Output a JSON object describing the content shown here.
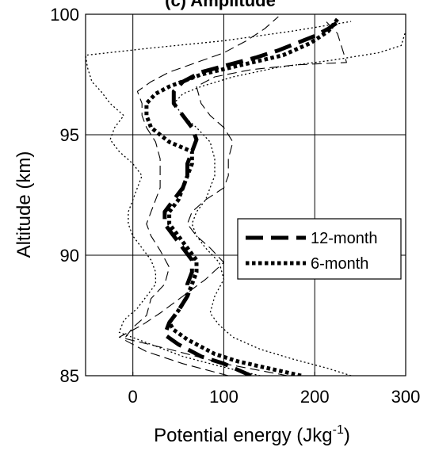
{
  "chart_data": {
    "type": "line",
    "title": "(c) Amplitude",
    "xlabel": "Potential energy (Jkg",
    "xlabel_sup": "-1",
    "xlabel_close": ")",
    "ylabel": "Altitude (km)",
    "xlim": [
      -52,
      300
    ],
    "ylim": [
      85,
      100
    ],
    "xticks": [
      0,
      100,
      200,
      300
    ],
    "yticks": [
      85,
      90,
      95,
      100
    ],
    "xtick_labels": [
      "0",
      "100",
      "200",
      "300"
    ],
    "ytick_labels": [
      "85",
      "90",
      "95",
      "100"
    ],
    "grid": true,
    "legend_placement": "center-right",
    "series": [
      {
        "name": "12-month",
        "style": "dashed-thick",
        "points": [
          [
            130,
            85
          ],
          [
            100,
            85.5
          ],
          [
            75,
            85.8
          ],
          [
            50,
            86.3
          ],
          [
            35,
            86.7
          ],
          [
            40,
            87.2
          ],
          [
            50,
            87.7
          ],
          [
            60,
            88.3
          ],
          [
            60,
            88.8
          ],
          [
            65,
            89.3
          ],
          [
            65,
            89.8
          ],
          [
            55,
            90.3
          ],
          [
            45,
            90.8
          ],
          [
            35,
            91.3
          ],
          [
            35,
            91.8
          ],
          [
            45,
            92.3
          ],
          [
            55,
            92.8
          ],
          [
            60,
            93.3
          ],
          [
            60,
            93.8
          ],
          [
            65,
            94.3
          ],
          [
            70,
            94.8
          ],
          [
            65,
            95.3
          ],
          [
            55,
            95.8
          ],
          [
            45,
            96.3
          ],
          [
            45,
            96.8
          ],
          [
            55,
            97.2
          ],
          [
            75,
            97.6
          ],
          [
            105,
            97.9
          ],
          [
            135,
            98.2
          ],
          [
            160,
            98.5
          ],
          [
            180,
            98.8
          ],
          [
            200,
            99.1
          ],
          [
            215,
            99.4
          ],
          [
            230,
            99.8
          ]
        ]
      },
      {
        "name": "6-month",
        "style": "dotted-thick",
        "points": [
          [
            185,
            85
          ],
          [
            150,
            85.3
          ],
          [
            115,
            85.6
          ],
          [
            90,
            85.9
          ],
          [
            75,
            86.2
          ],
          [
            60,
            86.5
          ],
          [
            45,
            86.9
          ],
          [
            40,
            87.2
          ],
          [
            50,
            87.7
          ],
          [
            60,
            88.3
          ],
          [
            65,
            88.8
          ],
          [
            70,
            89.3
          ],
          [
            70,
            89.8
          ],
          [
            60,
            90.3
          ],
          [
            50,
            90.8
          ],
          [
            40,
            91.3
          ],
          [
            40,
            91.8
          ],
          [
            50,
            92.3
          ],
          [
            55,
            92.8
          ],
          [
            60,
            93.3
          ],
          [
            65,
            93.8
          ],
          [
            65,
            94.3
          ],
          [
            40,
            94.7
          ],
          [
            20,
            95.3
          ],
          [
            15,
            95.8
          ],
          [
            15,
            96.3
          ],
          [
            25,
            96.7
          ],
          [
            40,
            97.0
          ],
          [
            75,
            97.5
          ],
          [
            120,
            97.9
          ],
          [
            165,
            98.3
          ],
          [
            195,
            98.8
          ],
          [
            215,
            99.3
          ],
          [
            225,
            99.8
          ]
        ]
      },
      {
        "name": "",
        "style": "dashed-thin",
        "points": [
          [
            170,
            85
          ],
          [
            100,
            85.5
          ],
          [
            40,
            86.1
          ],
          [
            -15,
            86.6
          ],
          [
            10,
            87.1
          ],
          [
            30,
            87.6
          ],
          [
            55,
            88.3
          ],
          [
            80,
            89.0
          ],
          [
            100,
            89.7
          ],
          [
            85,
            90.3
          ],
          [
            70,
            90.8
          ],
          [
            60,
            91.3
          ],
          [
            65,
            91.8
          ],
          [
            80,
            92.3
          ],
          [
            100,
            92.8
          ],
          [
            105,
            93.3
          ],
          [
            105,
            94.0
          ],
          [
            110,
            94.7
          ],
          [
            100,
            95.3
          ],
          [
            85,
            95.8
          ],
          [
            75,
            96.3
          ],
          [
            70,
            97.0
          ],
          [
            90,
            97.4
          ],
          [
            130,
            97.7
          ],
          [
            180,
            97.9
          ],
          [
            235,
            98.0
          ],
          [
            225,
            99.2
          ],
          [
            210,
            99.8
          ]
        ]
      },
      {
        "name": "",
        "style": "dashed-thin",
        "points": [
          [
            105,
            85
          ],
          [
            55,
            85.5
          ],
          [
            15,
            86.0
          ],
          [
            -10,
            86.5
          ],
          [
            0,
            87.0
          ],
          [
            15,
            87.5
          ],
          [
            20,
            88.2
          ],
          [
            35,
            88.8
          ],
          [
            40,
            89.5
          ],
          [
            30,
            90.2
          ],
          [
            20,
            90.8
          ],
          [
            15,
            91.3
          ],
          [
            20,
            91.8
          ],
          [
            25,
            92.3
          ],
          [
            30,
            92.8
          ],
          [
            30,
            93.3
          ],
          [
            30,
            94.0
          ],
          [
            25,
            94.7
          ],
          [
            15,
            95.3
          ],
          [
            10,
            95.8
          ],
          [
            10,
            96.3
          ],
          [
            5,
            96.8
          ],
          [
            20,
            97.2
          ],
          [
            40,
            97.6
          ],
          [
            70,
            98.0
          ],
          [
            100,
            98.4
          ],
          [
            125,
            98.9
          ],
          [
            145,
            99.4
          ],
          [
            160,
            99.9
          ]
        ]
      },
      {
        "name": "",
        "style": "dotted-thin",
        "points": [
          [
            240,
            85
          ],
          [
            215,
            85.3
          ],
          [
            175,
            85.7
          ],
          [
            140,
            86.1
          ],
          [
            110,
            86.6
          ],
          [
            95,
            87.1
          ],
          [
            85,
            87.6
          ],
          [
            90,
            88.3
          ],
          [
            100,
            89.0
          ],
          [
            95,
            89.7
          ],
          [
            80,
            90.3
          ],
          [
            70,
            90.8
          ],
          [
            65,
            91.3
          ],
          [
            70,
            91.8
          ],
          [
            80,
            92.3
          ],
          [
            85,
            92.8
          ],
          [
            90,
            93.3
          ],
          [
            90,
            94.0
          ],
          [
            85,
            94.7
          ],
          [
            70,
            95.3
          ],
          [
            55,
            95.8
          ],
          [
            45,
            96.3
          ],
          [
            55,
            96.7
          ],
          [
            75,
            97.0
          ],
          [
            110,
            97.4
          ],
          [
            160,
            97.8
          ],
          [
            220,
            98.1
          ],
          [
            270,
            98.4
          ],
          [
            295,
            98.7
          ],
          [
            300,
            99.3
          ]
        ]
      },
      {
        "name": "",
        "style": "dotted-thin",
        "points": [
          [
            140,
            85
          ],
          [
            95,
            85.4
          ],
          [
            55,
            85.8
          ],
          [
            20,
            86.3
          ],
          [
            -15,
            86.8
          ],
          [
            -10,
            87.3
          ],
          [
            5,
            87.8
          ],
          [
            15,
            88.3
          ],
          [
            25,
            88.8
          ],
          [
            25,
            89.3
          ],
          [
            20,
            89.8
          ],
          [
            10,
            90.3
          ],
          [
            0,
            90.8
          ],
          [
            -5,
            91.3
          ],
          [
            -5,
            91.8
          ],
          [
            0,
            92.3
          ],
          [
            5,
            92.8
          ],
          [
            10,
            93.3
          ],
          [
            0,
            93.8
          ],
          [
            -15,
            94.3
          ],
          [
            -25,
            94.8
          ],
          [
            -20,
            95.3
          ],
          [
            -10,
            95.8
          ],
          [
            -25,
            96.3
          ],
          [
            -35,
            96.8
          ],
          [
            -45,
            97.2
          ],
          [
            -50,
            97.8
          ],
          [
            -52,
            98.3
          ],
          [
            20,
            98.6
          ],
          [
            100,
            98.9
          ],
          [
            175,
            99.3
          ],
          [
            240,
            99.7
          ]
        ]
      }
    ]
  }
}
